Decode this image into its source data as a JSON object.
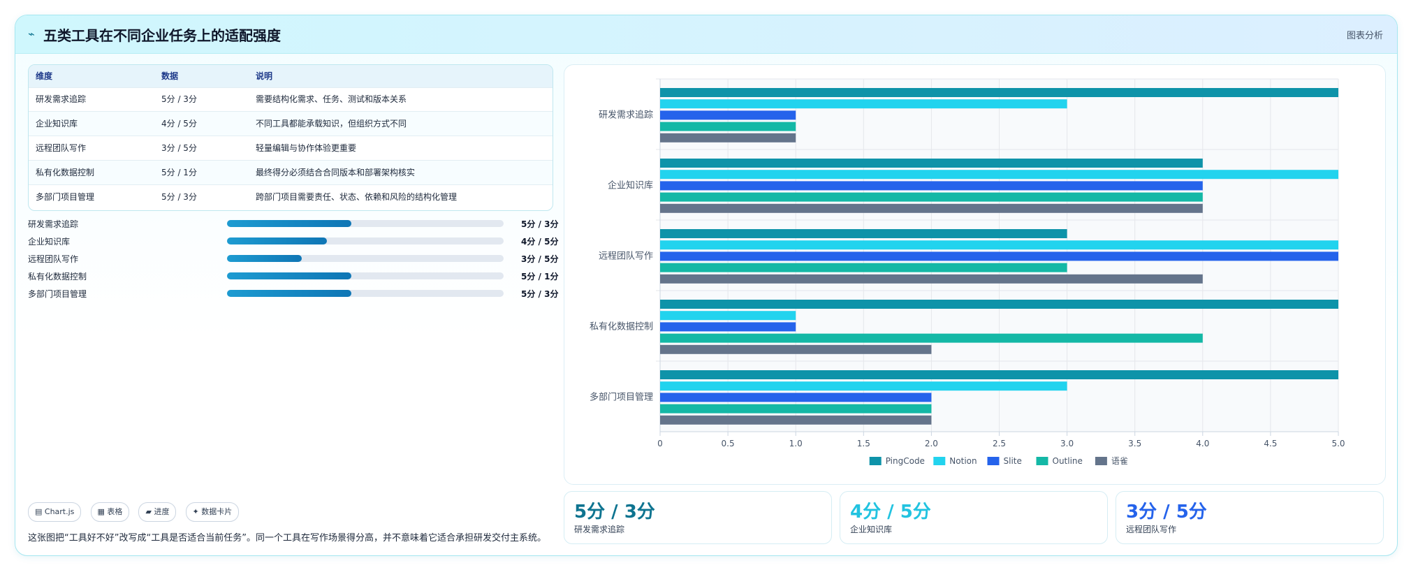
{
  "header": {
    "icon": "chart-line-icon",
    "title": "五类工具在不同企业任务上的适配强度",
    "right_label": "图表分析"
  },
  "table": {
    "columns": [
      "维度",
      "数据",
      "说明"
    ],
    "rows": [
      [
        "研发需求追踪",
        "5分 / 3分",
        "需要结构化需求、任务、测试和版本关系"
      ],
      [
        "企业知识库",
        "4分 / 5分",
        "不同工具都能承载知识，但组织方式不同"
      ],
      [
        "远程团队写作",
        "3分 / 5分",
        "轻量编辑与协作体验更重要"
      ],
      [
        "私有化数据控制",
        "5分 / 1分",
        "最终得分必须结合合同版本和部署架构核实"
      ],
      [
        "多部门项目管理",
        "5分 / 3分",
        "跨部门项目需要责任、状态、依赖和风险的结构化管理"
      ]
    ]
  },
  "progress": [
    {
      "label": "研发需求追踪",
      "value": "5分 / 3分",
      "fraction": 0.45
    },
    {
      "label": "企业知识库",
      "value": "4分 / 5分",
      "fraction": 0.36
    },
    {
      "label": "远程团队写作",
      "value": "3分 / 5分",
      "fraction": 0.27
    },
    {
      "label": "私有化数据控制",
      "value": "5分 / 1分",
      "fraction": 0.45
    },
    {
      "label": "多部门项目管理",
      "value": "5分 / 3分",
      "fraction": 0.45
    }
  ],
  "chips": [
    "▤ Chart.js",
    "▦ 表格",
    "▰ 进度",
    "✦ 数据卡片"
  ],
  "note": "这张图把“工具好不好”改写成“工具是否适合当前任务”。同一个工具在写作场景得分高，并不意味着它适合承担研发交付主系统。",
  "stats": [
    {
      "value": "5分 / 3分",
      "label": "研发需求追踪",
      "color": "#0e7490"
    },
    {
      "value": "4分 / 5分",
      "label": "企业知识库",
      "color": "#22c3e0"
    },
    {
      "value": "3分 / 5分",
      "label": "远程团队写作",
      "color": "#2563eb"
    }
  ],
  "chart_data": {
    "type": "bar",
    "orientation": "horizontal",
    "categories": [
      "研发需求追踪",
      "企业知识库",
      "远程团队写作",
      "私有化数据控制",
      "多部门项目管理"
    ],
    "series": [
      {
        "name": "PingCode",
        "color": "#0e93a9",
        "values": [
          5,
          4,
          3,
          5,
          5
        ]
      },
      {
        "name": "Notion",
        "color": "#22d3ee",
        "values": [
          3,
          5,
          5,
          1,
          3
        ]
      },
      {
        "name": "Slite",
        "color": "#2563eb",
        "values": [
          1,
          4,
          5,
          1,
          2
        ]
      },
      {
        "name": "Outline",
        "color": "#14b8a6",
        "values": [
          1,
          4,
          3,
          4,
          2
        ]
      },
      {
        "name": "语雀",
        "color": "#64748b",
        "values": [
          1,
          4,
          4,
          2,
          2
        ]
      }
    ],
    "xlim": [
      0,
      5
    ],
    "xticks": [
      "0",
      "0.5",
      "1.0",
      "1.5",
      "2.0",
      "2.5",
      "3.0",
      "3.5",
      "4.0",
      "4.5",
      "5.0"
    ],
    "grid": true,
    "legend": "bottom"
  }
}
